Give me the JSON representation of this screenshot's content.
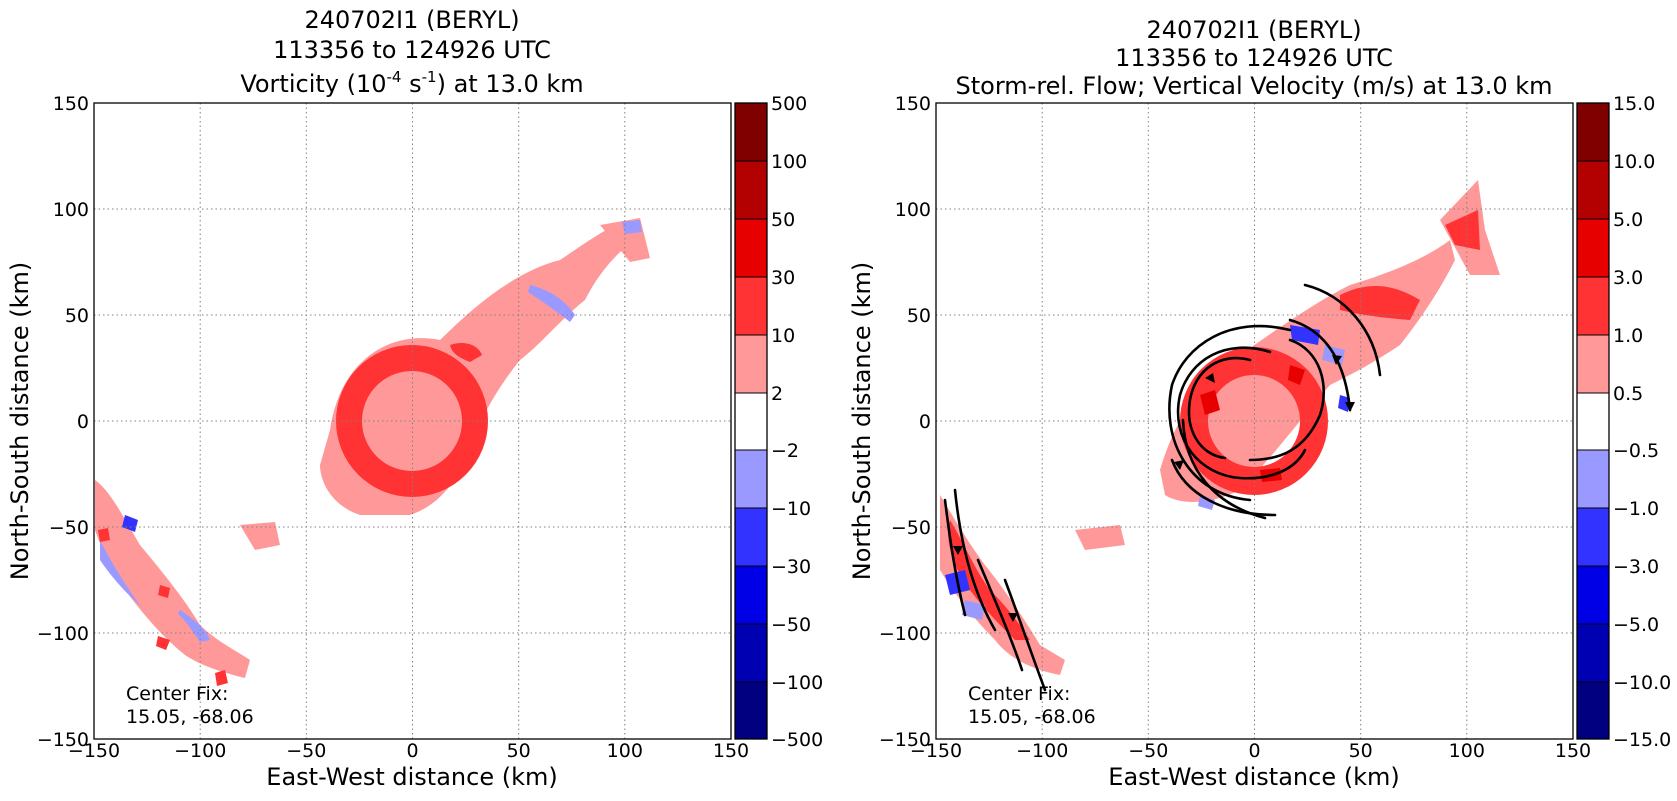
{
  "chart_data": [
    {
      "type": "heatmap",
      "title_lines": [
        "240702I1 (BERYL)",
        "113356 to 124926 UTC"
      ],
      "title_var": {
        "pre": "Vorticity (10",
        "sup1": "-4",
        "mid": " s",
        "sup2": "-1",
        "post": ") at 13.0 km"
      },
      "xlabel": "East-West distance (km)",
      "ylabel": "North-South distance (km)",
      "xlim": [
        -150,
        150
      ],
      "ylim": [
        -150,
        150
      ],
      "xticks": [
        "−150",
        "−100",
        "−50",
        "0",
        "50",
        "100",
        "150"
      ],
      "yticks": [
        "−150",
        "−100",
        "−50",
        "0",
        "50",
        "100",
        "150"
      ],
      "grid": true,
      "annotation": [
        "Center Fix:",
        "15.05, -68.06"
      ],
      "colorbar": {
        "labels": [
          "500",
          "100",
          "50",
          "30",
          "10",
          "2",
          "−2",
          "−10",
          "−30",
          "−50",
          "−100",
          "−500"
        ],
        "colors": [
          "#800000",
          "#b30000",
          "#e60000",
          "#ff3333",
          "#ff9999",
          "#ffffff",
          "#9999ff",
          "#3333ff",
          "#0000e6",
          "#0000b3",
          "#000080"
        ]
      }
    },
    {
      "type": "heatmap",
      "title_lines": [
        "240702I1 (BERYL)",
        "113356 to 124926 UTC",
        "Storm-rel. Flow; Vertical Velocity (m/s) at 13.0 km"
      ],
      "xlabel": "East-West distance (km)",
      "ylabel": "North-South distance (km)",
      "xlim": [
        -150,
        150
      ],
      "ylim": [
        -150,
        150
      ],
      "xticks": [
        "−150",
        "−100",
        "−50",
        "0",
        "50",
        "100",
        "150"
      ],
      "yticks": [
        "−150",
        "−100",
        "−50",
        "0",
        "50",
        "100",
        "150"
      ],
      "grid": true,
      "annotation": [
        "Center Fix:",
        "15.05, -68.06"
      ],
      "colorbar": {
        "labels": [
          "15.0",
          "10.0",
          "5.0",
          "3.0",
          "1.0",
          "0.5",
          "−0.5",
          "−1.0",
          "−3.0",
          "−5.0",
          "−10.0",
          "−15.0"
        ],
        "colors": [
          "#800000",
          "#b30000",
          "#e60000",
          "#ff3333",
          "#ff9999",
          "#ffffff",
          "#9999ff",
          "#3333ff",
          "#0000e6",
          "#0000b3",
          "#000080"
        ]
      }
    }
  ]
}
